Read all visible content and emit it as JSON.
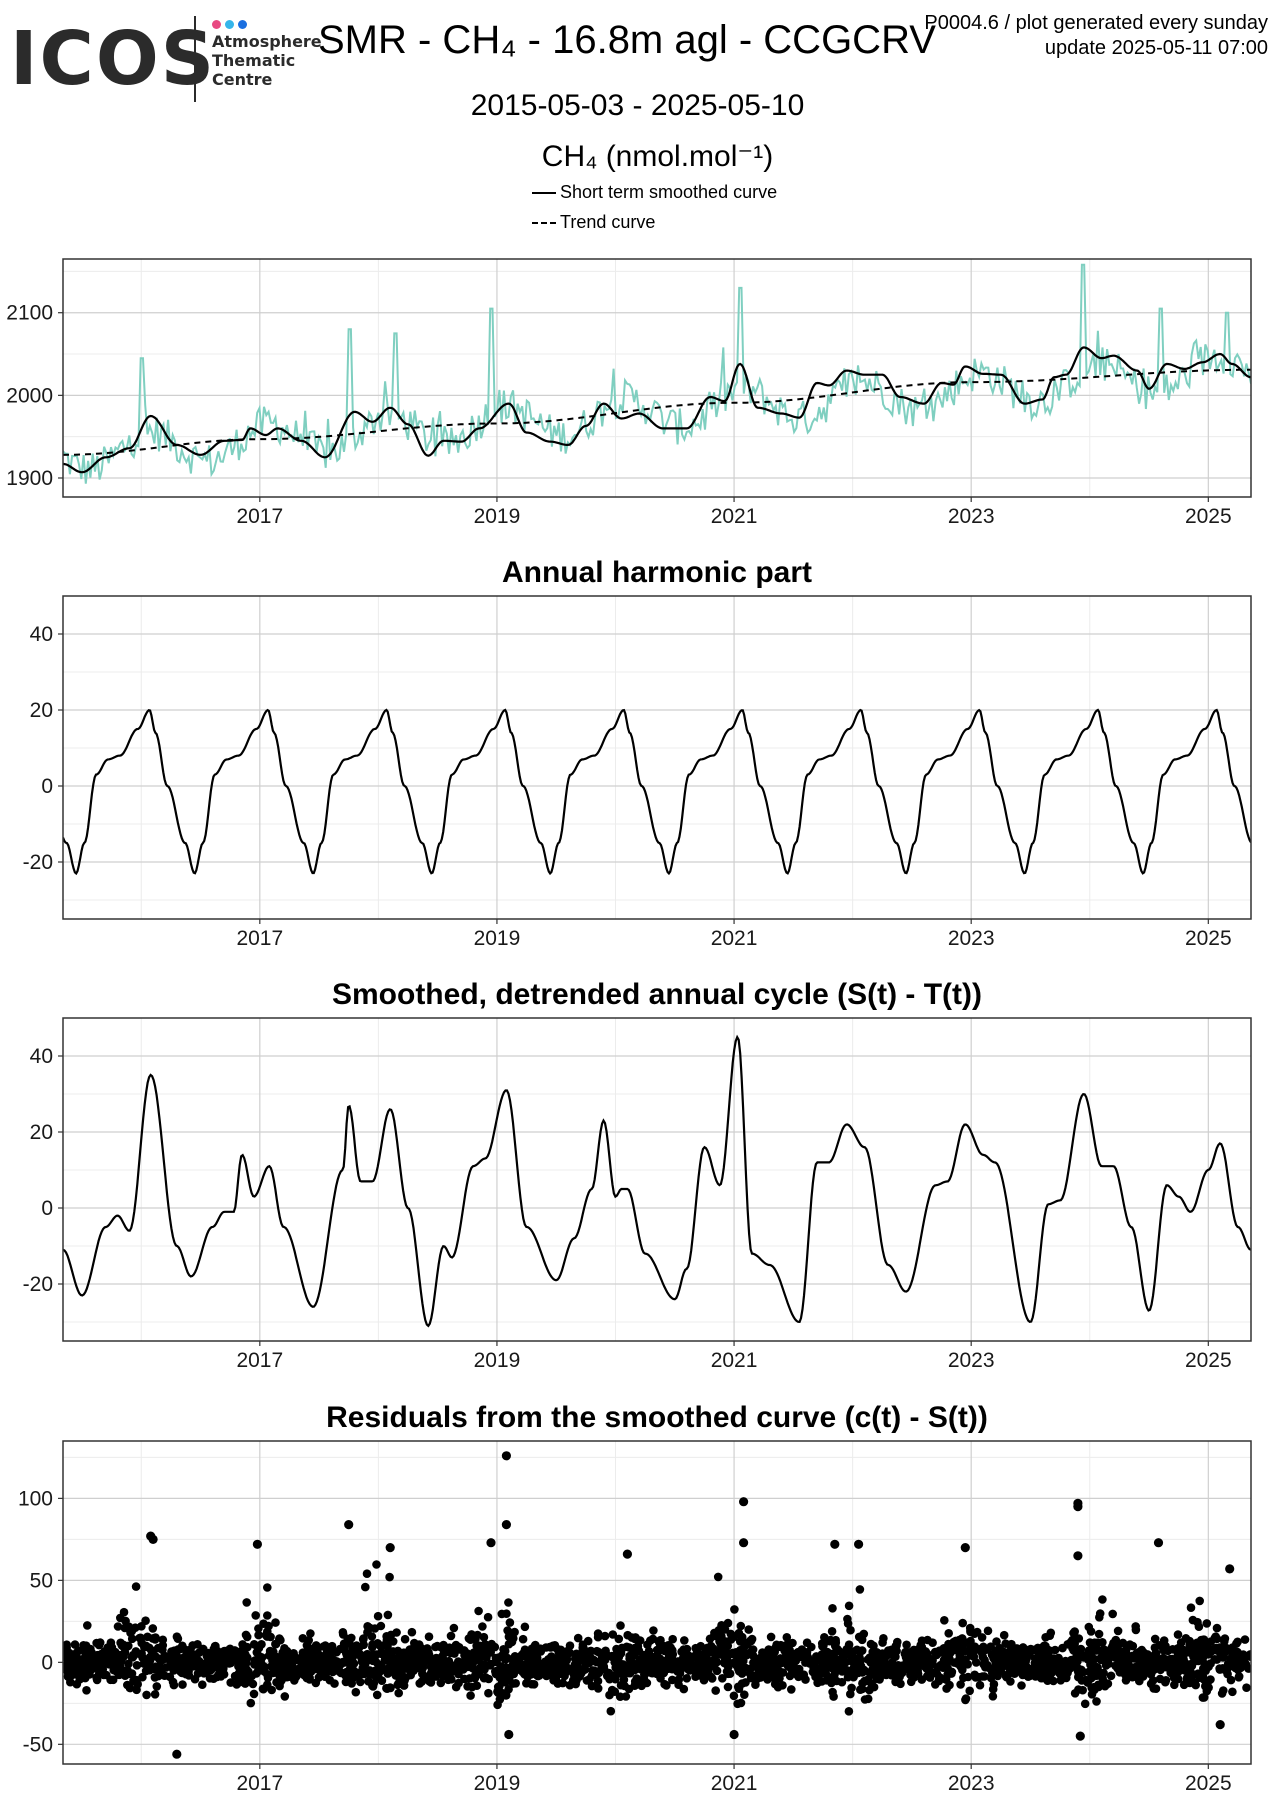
{
  "header": {
    "logo_word": "ICOS",
    "logo_lines": [
      "Atmosphere",
      "Thematic",
      "Centre"
    ],
    "logo_dot_colors": [
      "#e84a82",
      "#35b5ea",
      "#1b6fe0"
    ],
    "title": "SMR - CH₄ - 16.8m agl - CCGCRV",
    "meta_line1": "P0004.6 / plot generated every sunday",
    "meta_line2": "update  2025-05-11 07:00",
    "date_range": "2015-05-03 - 2025-05-10",
    "units": "CH₄ (nmol.mol⁻¹)"
  },
  "legend": [
    {
      "label": "Short term smoothed curve",
      "style": "solid"
    },
    {
      "label": "Trend curve",
      "style": "dashed"
    }
  ],
  "colors": {
    "observations": "#7fcfc0",
    "smooth": "#000000",
    "trend": "#000000",
    "grid_major": "#cfcfcf",
    "grid_minor": "#ececec",
    "panel_border": "#333333"
  },
  "chart_data": [
    {
      "type": "line",
      "title": "",
      "x_range": [
        2015.34,
        2025.36
      ],
      "ylim": [
        1877,
        2165
      ],
      "x_ticks": [
        2017,
        2019,
        2021,
        2023,
        2025
      ],
      "y_ticks": [
        1900,
        2000,
        2100
      ],
      "y_tick_labels": [
        "1900",
        "2000",
        "2100"
      ],
      "series": [
        {
          "name": "",
          "kind": "observations",
          "color": "#7fcfc0",
          "trend_start": 1928,
          "trend_end": 2031,
          "seasonal_amplitude": 20,
          "noise_amplitude": 28,
          "spikes": [
            [
              2016.0,
              2045
            ],
            [
              2017.75,
              2080
            ],
            [
              2018.15,
              2075
            ],
            [
              2018.95,
              2105
            ],
            [
              2021.05,
              2130
            ],
            [
              2023.95,
              2158
            ],
            [
              2024.6,
              2105
            ],
            [
              2025.15,
              2100
            ]
          ]
        },
        {
          "name": "Short term smoothed curve",
          "kind": "smooth",
          "points": [
            [
              2015.34,
              1917
            ],
            [
              2015.5,
              1907
            ],
            [
              2015.7,
              1925
            ],
            [
              2015.9,
              1936
            ],
            [
              2016.08,
              1975
            ],
            [
              2016.3,
              1940
            ],
            [
              2016.5,
              1928
            ],
            [
              2016.7,
              1945
            ],
            [
              2016.85,
              1946
            ],
            [
              2016.92,
              1960
            ],
            [
              2017.05,
              1952
            ],
            [
              2017.15,
              1960
            ],
            [
              2017.35,
              1945
            ],
            [
              2017.55,
              1925
            ],
            [
              2017.8,
              1980
            ],
            [
              2017.95,
              1968
            ],
            [
              2018.1,
              1985
            ],
            [
              2018.25,
              1965
            ],
            [
              2018.42,
              1927
            ],
            [
              2018.55,
              1945
            ],
            [
              2018.7,
              1944
            ],
            [
              2018.85,
              1960
            ],
            [
              2019.1,
              1990
            ],
            [
              2019.25,
              1955
            ],
            [
              2019.45,
              1944
            ],
            [
              2019.6,
              1940
            ],
            [
              2019.75,
              1963
            ],
            [
              2019.9,
              1990
            ],
            [
              2020.05,
              1972
            ],
            [
              2020.2,
              1978
            ],
            [
              2020.4,
              1960
            ],
            [
              2020.6,
              1960
            ],
            [
              2020.8,
              1998
            ],
            [
              2020.92,
              1993
            ],
            [
              2021.05,
              2038
            ],
            [
              2021.2,
              1985
            ],
            [
              2021.4,
              1978
            ],
            [
              2021.55,
              1973
            ],
            [
              2021.7,
              2015
            ],
            [
              2021.8,
              2012
            ],
            [
              2021.95,
              2030
            ],
            [
              2022.1,
              2025
            ],
            [
              2022.25,
              2025
            ],
            [
              2022.4,
              1998
            ],
            [
              2022.6,
              1990
            ],
            [
              2022.75,
              2015
            ],
            [
              2022.85,
              2013
            ],
            [
              2022.95,
              2035
            ],
            [
              2023.1,
              2026
            ],
            [
              2023.25,
              2025
            ],
            [
              2023.45,
              1990
            ],
            [
              2023.6,
              1995
            ],
            [
              2023.7,
              2022
            ],
            [
              2023.8,
              2025
            ],
            [
              2023.95,
              2058
            ],
            [
              2024.1,
              2045
            ],
            [
              2024.2,
              2048
            ],
            [
              2024.4,
              2030
            ],
            [
              2024.5,
              2008
            ],
            [
              2024.65,
              2038
            ],
            [
              2024.8,
              2032
            ],
            [
              2024.95,
              2040
            ],
            [
              2025.1,
              2050
            ],
            [
              2025.2,
              2038
            ],
            [
              2025.36,
              2022
            ]
          ]
        },
        {
          "name": "Trend curve",
          "kind": "trend",
          "points": [
            [
              2015.34,
              1928
            ],
            [
              2017.0,
              1947
            ],
            [
              2019.0,
              1966
            ],
            [
              2021.0,
              1991
            ],
            [
              2023.0,
              2016
            ],
            [
              2025.36,
              2031
            ]
          ]
        }
      ]
    },
    {
      "type": "line",
      "title": "Annual harmonic part",
      "x_range": [
        2015.34,
        2025.36
      ],
      "ylim": [
        -35,
        50
      ],
      "x_ticks": [
        2017,
        2019,
        2021,
        2023,
        2025
      ],
      "y_ticks": [
        -20,
        0,
        20,
        40
      ],
      "y_tick_labels": [
        "-20",
        "0",
        "20",
        "40"
      ],
      "series": [
        {
          "name": "",
          "kind": "harmonic",
          "period_points": [
            [
              0.0,
              20
            ],
            [
              0.05,
              14
            ],
            [
              0.15,
              0
            ],
            [
              0.3,
              -15
            ],
            [
              0.38,
              -23
            ],
            [
              0.45,
              -15
            ],
            [
              0.55,
              3
            ],
            [
              0.65,
              7
            ],
            [
              0.75,
              8
            ],
            [
              0.9,
              15
            ],
            [
              1.0,
              20
            ]
          ],
          "peak_phase": 2016.07,
          "x_start": 2015.34,
          "x_end": 2025.36
        }
      ]
    },
    {
      "type": "line",
      "title": "Smoothed, detrended annual cycle (S(t) - T(t))",
      "x_range": [
        2015.34,
        2025.36
      ],
      "ylim": [
        -35,
        50
      ],
      "x_ticks": [
        2017,
        2019,
        2021,
        2023,
        2025
      ],
      "y_ticks": [
        -20,
        0,
        20,
        40
      ],
      "y_tick_labels": [
        "-20",
        "0",
        "20",
        "40"
      ],
      "series": [
        {
          "name": "",
          "kind": "detrended",
          "points": [
            [
              2015.34,
              -11
            ],
            [
              2015.5,
              -23
            ],
            [
              2015.7,
              -5
            ],
            [
              2015.8,
              -2
            ],
            [
              2015.9,
              -6
            ],
            [
              2016.08,
              35
            ],
            [
              2016.3,
              -10
            ],
            [
              2016.42,
              -18
            ],
            [
              2016.6,
              -5
            ],
            [
              2016.7,
              -1
            ],
            [
              2016.78,
              -1
            ],
            [
              2016.85,
              14
            ],
            [
              2016.95,
              3
            ],
            [
              2017.08,
              11
            ],
            [
              2017.2,
              -5
            ],
            [
              2017.45,
              -26
            ],
            [
              2017.7,
              10
            ],
            [
              2017.75,
              27
            ],
            [
              2017.85,
              7
            ],
            [
              2017.95,
              7
            ],
            [
              2018.1,
              26
            ],
            [
              2018.25,
              0
            ],
            [
              2018.42,
              -31
            ],
            [
              2018.55,
              -10
            ],
            [
              2018.62,
              -13
            ],
            [
              2018.8,
              11
            ],
            [
              2018.9,
              13
            ],
            [
              2019.08,
              31
            ],
            [
              2019.25,
              -5
            ],
            [
              2019.5,
              -19
            ],
            [
              2019.65,
              -8
            ],
            [
              2019.8,
              5
            ],
            [
              2019.9,
              23
            ],
            [
              2020.0,
              3
            ],
            [
              2020.05,
              5
            ],
            [
              2020.1,
              5
            ],
            [
              2020.25,
              -12
            ],
            [
              2020.5,
              -24
            ],
            [
              2020.6,
              -16
            ],
            [
              2020.75,
              16
            ],
            [
              2020.88,
              6
            ],
            [
              2021.03,
              45
            ],
            [
              2021.15,
              -12
            ],
            [
              2021.3,
              -15
            ],
            [
              2021.55,
              -30
            ],
            [
              2021.7,
              12
            ],
            [
              2021.8,
              12
            ],
            [
              2021.95,
              22
            ],
            [
              2022.1,
              16
            ],
            [
              2022.3,
              -15
            ],
            [
              2022.45,
              -22
            ],
            [
              2022.7,
              6
            ],
            [
              2022.8,
              7
            ],
            [
              2022.95,
              22
            ],
            [
              2023.1,
              14
            ],
            [
              2023.2,
              12
            ],
            [
              2023.5,
              -30
            ],
            [
              2023.65,
              1
            ],
            [
              2023.75,
              2
            ],
            [
              2023.95,
              30
            ],
            [
              2024.1,
              11
            ],
            [
              2024.2,
              11
            ],
            [
              2024.35,
              -5
            ],
            [
              2024.5,
              -27
            ],
            [
              2024.65,
              6
            ],
            [
              2024.75,
              3
            ],
            [
              2024.85,
              -1
            ],
            [
              2025.0,
              10
            ],
            [
              2025.1,
              17
            ],
            [
              2025.25,
              -5
            ],
            [
              2025.36,
              -11
            ]
          ]
        }
      ]
    },
    {
      "type": "scatter",
      "title": "Residuals from the smoothed curve (c(t) - S(t))",
      "x_range": [
        2015.34,
        2025.36
      ],
      "ylim": [
        -62,
        135
      ],
      "x_ticks": [
        2017,
        2019,
        2021,
        2023,
        2025
      ],
      "y_ticks": [
        -50,
        0,
        50,
        100
      ],
      "y_tick_labels": [
        "-50",
        "0",
        "50",
        "100"
      ],
      "series": [
        {
          "name": "",
          "kind": "residuals",
          "outliers": [
            [
              2016.08,
              77
            ],
            [
              2016.1,
              75
            ],
            [
              2016.3,
              -56
            ],
            [
              2016.98,
              72
            ],
            [
              2017.75,
              84
            ],
            [
              2018.1,
              70
            ],
            [
              2018.95,
              73
            ],
            [
              2019.08,
              126
            ],
            [
              2019.08,
              84
            ],
            [
              2019.1,
              -44
            ],
            [
              2020.1,
              66
            ],
            [
              2021.08,
              98
            ],
            [
              2021.08,
              73
            ],
            [
              2021.0,
              -44
            ],
            [
              2021.85,
              72
            ],
            [
              2022.05,
              72
            ],
            [
              2022.95,
              70
            ],
            [
              2023.9,
              97
            ],
            [
              2023.9,
              95
            ],
            [
              2023.9,
              65
            ],
            [
              2023.92,
              -45
            ],
            [
              2024.58,
              73
            ],
            [
              2025.18,
              57
            ],
            [
              2025.1,
              -38
            ]
          ],
          "samples_per_week": 1,
          "x_start": 2015.34,
          "x_end": 2025.36
        }
      ]
    }
  ]
}
